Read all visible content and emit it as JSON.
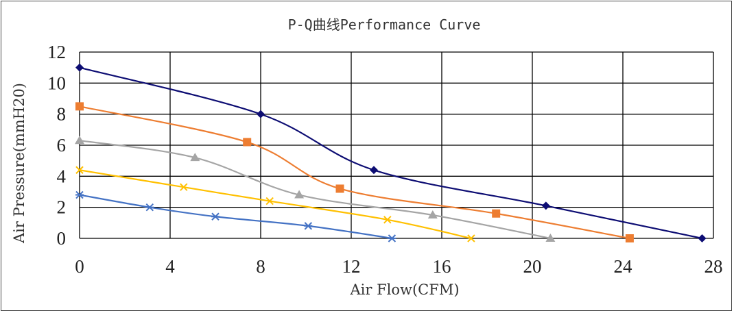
{
  "chart_data": {
    "type": "line",
    "title": "P-Q曲线Performance Curve",
    "xlabel": "Air Flow(CFM)",
    "ylabel": "Air Pressure(mmH20)",
    "xlim": [
      0,
      28
    ],
    "ylim": [
      0,
      12
    ],
    "xticks": [
      0,
      4,
      8,
      12,
      16,
      20,
      24,
      28
    ],
    "yticks": [
      0,
      2,
      4,
      6,
      8,
      10,
      12
    ],
    "grid": true,
    "legend": "none",
    "series": [
      {
        "color": "#0d0d73",
        "marker": "diamond",
        "points": [
          [
            0,
            11.0
          ],
          [
            8.0,
            8.0
          ],
          [
            13.0,
            4.4
          ],
          [
            20.6,
            2.1
          ],
          [
            27.5,
            0.0
          ]
        ]
      },
      {
        "color": "#ed7d31",
        "marker": "square",
        "points": [
          [
            0,
            8.5
          ],
          [
            7.4,
            6.2
          ],
          [
            11.5,
            3.2
          ],
          [
            18.4,
            1.6
          ],
          [
            24.3,
            0.0
          ]
        ]
      },
      {
        "color": "#a5a5a5",
        "marker": "triangle",
        "points": [
          [
            0,
            6.3
          ],
          [
            5.1,
            5.2
          ],
          [
            9.7,
            2.8
          ],
          [
            15.6,
            1.5
          ],
          [
            20.8,
            0.0
          ]
        ]
      },
      {
        "color": "#ffc000",
        "marker": "x",
        "points": [
          [
            0,
            4.4
          ],
          [
            4.6,
            3.3
          ],
          [
            8.4,
            2.4
          ],
          [
            13.6,
            1.2
          ],
          [
            17.3,
            0.0
          ]
        ]
      },
      {
        "color": "#4472c4",
        "marker": "asterisk",
        "points": [
          [
            0,
            2.8
          ],
          [
            3.1,
            2.0
          ],
          [
            6.0,
            1.4
          ],
          [
            10.1,
            0.8
          ],
          [
            13.8,
            0.0
          ]
        ]
      }
    ]
  }
}
